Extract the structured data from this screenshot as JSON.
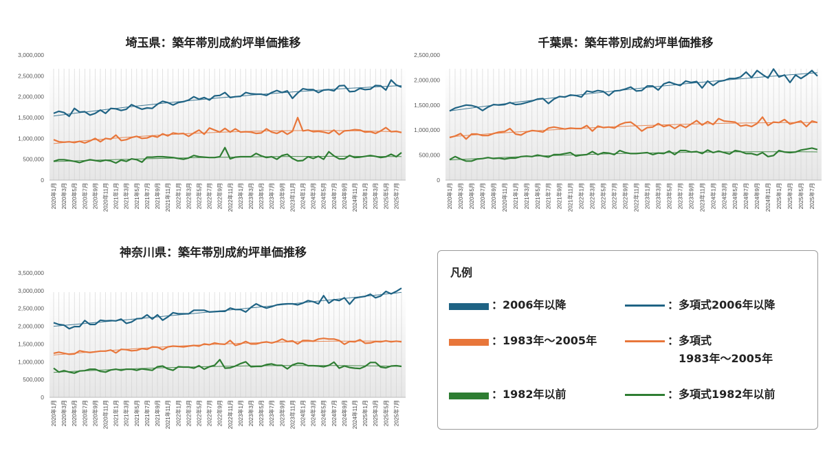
{
  "colors": {
    "post2006": "#1f6384",
    "y1983_2005": "#e8763a",
    "pre1982": "#2e7d32",
    "grid": "#d9d9d9"
  },
  "legend": {
    "title": "凡例",
    "items": [
      {
        "label": "：2006年以降",
        "type": "bar",
        "color": "#1f6384"
      },
      {
        "label": "：多項式2006年以降",
        "type": "line",
        "color": "#1f6384"
      },
      {
        "label": "：1983年～2005年",
        "type": "bar",
        "color": "#e8763a"
      },
      {
        "label": "：多項式\n　1983年～2005年",
        "type": "line",
        "color": "#e8763a"
      },
      {
        "label": "：1982年以前",
        "type": "bar",
        "color": "#2e7d32"
      },
      {
        "label": "：多項式1982年以前",
        "type": "line",
        "color": "#2e7d32"
      }
    ]
  },
  "chart_data": [
    {
      "type": "line",
      "title": "埼玉県：築年帯別成約坪単価推移",
      "ylim": [
        0,
        3000000
      ],
      "yticks": [
        "0",
        "500,000",
        "1,000,000",
        "1,500,000",
        "2,000,000",
        "2,500,000",
        "3,000,000"
      ],
      "start": "2020-01",
      "months": 68,
      "trendline": "polynomial",
      "series": [
        {
          "key": "post2006",
          "values": [
            1600000,
            1650000,
            1620000,
            1530000,
            1720000,
            1630000,
            1640000,
            1560000,
            1600000,
            1680000,
            1600000,
            1720000,
            1710000,
            1670000,
            1700000,
            1810000,
            1750000,
            1700000,
            1730000,
            1720000,
            1820000,
            1890000,
            1860000,
            1800000,
            1860000,
            1880000,
            1920000,
            2000000,
            1940000,
            1980000,
            1920000,
            2020000,
            2030000,
            2100000,
            1980000,
            2000000,
            2010000,
            2100000,
            2070000,
            2060000,
            2060000,
            2030000,
            2100000,
            2150000,
            2100000,
            2140000,
            1960000,
            2090000,
            2190000,
            2170000,
            2170000,
            2100000,
            2160000,
            2170000,
            2140000,
            2260000,
            2270000,
            2120000,
            2130000,
            2200000,
            2170000,
            2180000,
            2270000,
            2260000,
            2160000,
            2400000,
            2280000,
            2230000
          ]
        },
        {
          "key": "y1983_2005",
          "values": [
            970000,
            920000,
            910000,
            920000,
            900000,
            930000,
            890000,
            940000,
            1000000,
            920000,
            1000000,
            980000,
            1080000,
            950000,
            970000,
            1020000,
            1050000,
            1000000,
            1010000,
            1060000,
            1030000,
            1110000,
            1060000,
            1130000,
            1110000,
            1120000,
            1050000,
            1130000,
            1200000,
            1100000,
            1250000,
            1200000,
            1150000,
            1240000,
            1150000,
            1230000,
            1150000,
            1160000,
            1150000,
            1120000,
            1130000,
            1230000,
            1150000,
            1120000,
            1180000,
            1100000,
            1170000,
            1500000,
            1180000,
            1200000,
            1160000,
            1170000,
            1150000,
            1120000,
            1200000,
            1090000,
            1180000,
            1190000,
            1210000,
            1200000,
            1150000,
            1160000,
            1120000,
            1180000,
            1260000,
            1160000,
            1170000,
            1140000
          ]
        },
        {
          "key": "pre1982",
          "values": [
            450000,
            490000,
            490000,
            470000,
            450000,
            420000,
            460000,
            490000,
            470000,
            450000,
            480000,
            460000,
            410000,
            480000,
            450000,
            510000,
            490000,
            430000,
            550000,
            550000,
            560000,
            560000,
            550000,
            540000,
            520000,
            500000,
            530000,
            590000,
            560000,
            550000,
            540000,
            540000,
            560000,
            780000,
            510000,
            550000,
            560000,
            560000,
            560000,
            640000,
            580000,
            540000,
            560000,
            500000,
            590000,
            620000,
            520000,
            460000,
            470000,
            560000,
            520000,
            570000,
            500000,
            680000,
            580000,
            510000,
            510000,
            590000,
            540000,
            550000,
            570000,
            590000,
            570000,
            540000,
            560000,
            620000,
            560000,
            660000
          ]
        }
      ]
    },
    {
      "type": "line",
      "title": "千葉県：築年帯別成約坪単価推移",
      "ylim": [
        0,
        2500000
      ],
      "yticks": [
        "0",
        "500,000",
        "1,000,000",
        "1,500,000",
        "2,000,000",
        "2,500,000"
      ],
      "start": "2020-01",
      "months": 68,
      "trendline": "polynomial",
      "series": [
        {
          "key": "post2006",
          "values": [
            1380000,
            1440000,
            1470000,
            1500000,
            1490000,
            1460000,
            1390000,
            1460000,
            1510000,
            1500000,
            1510000,
            1550000,
            1510000,
            1520000,
            1550000,
            1580000,
            1620000,
            1630000,
            1530000,
            1620000,
            1670000,
            1660000,
            1700000,
            1690000,
            1660000,
            1780000,
            1760000,
            1790000,
            1770000,
            1690000,
            1780000,
            1790000,
            1820000,
            1860000,
            1780000,
            1790000,
            1880000,
            1880000,
            1800000,
            1920000,
            1960000,
            1920000,
            1890000,
            1980000,
            1950000,
            1970000,
            1840000,
            1980000,
            1890000,
            1970000,
            1990000,
            2030000,
            2030000,
            2060000,
            2160000,
            2050000,
            2190000,
            2110000,
            2040000,
            2220000,
            2060000,
            2100000,
            1950000,
            2100000,
            2030000,
            2100000,
            2190000,
            2080000
          ]
        },
        {
          "key": "y1983_2005",
          "values": [
            850000,
            880000,
            930000,
            820000,
            920000,
            920000,
            890000,
            890000,
            930000,
            960000,
            970000,
            1030000,
            920000,
            900000,
            960000,
            990000,
            980000,
            960000,
            1040000,
            1060000,
            1040000,
            1020000,
            1040000,
            1030000,
            1030000,
            1090000,
            980000,
            1080000,
            1050000,
            1060000,
            1040000,
            1110000,
            1150000,
            1160000,
            1080000,
            980000,
            1050000,
            1060000,
            1130000,
            1070000,
            1100000,
            1030000,
            1100000,
            1050000,
            1120000,
            1190000,
            1100000,
            1170000,
            1110000,
            1230000,
            1180000,
            1170000,
            1160000,
            1080000,
            1100000,
            1070000,
            1130000,
            1260000,
            1090000,
            1160000,
            1150000,
            1210000,
            1120000,
            1150000,
            1180000,
            1070000,
            1180000,
            1150000
          ]
        },
        {
          "key": "pre1982",
          "values": [
            410000,
            470000,
            420000,
            380000,
            380000,
            420000,
            430000,
            450000,
            430000,
            440000,
            420000,
            440000,
            440000,
            470000,
            480000,
            470000,
            500000,
            480000,
            460000,
            510000,
            510000,
            530000,
            550000,
            480000,
            500000,
            510000,
            570000,
            510000,
            550000,
            540000,
            510000,
            590000,
            550000,
            530000,
            530000,
            540000,
            550000,
            510000,
            540000,
            530000,
            580000,
            510000,
            590000,
            590000,
            560000,
            570000,
            530000,
            600000,
            550000,
            580000,
            550000,
            520000,
            590000,
            570000,
            530000,
            530000,
            500000,
            550000,
            470000,
            490000,
            590000,
            560000,
            550000,
            560000,
            600000,
            620000,
            640000,
            610000
          ]
        }
      ]
    },
    {
      "type": "line",
      "title": "神奈川県：築年帯別成約坪単価推移",
      "ylim": [
        0,
        3500000
      ],
      "yticks": [
        "0",
        "500,000",
        "1,000,000",
        "1,500,000",
        "2,000,000",
        "2,500,000",
        "3,000,000",
        "3,500,000"
      ],
      "start": "2020-01",
      "months": 68,
      "trendline": "polynomial",
      "series": [
        {
          "key": "post2006",
          "values": [
            2100000,
            2050000,
            2030000,
            1930000,
            1990000,
            1990000,
            2160000,
            2050000,
            2050000,
            2170000,
            2150000,
            2160000,
            2150000,
            2200000,
            2080000,
            2120000,
            2210000,
            2220000,
            2320000,
            2200000,
            2320000,
            2170000,
            2260000,
            2380000,
            2350000,
            2350000,
            2350000,
            2450000,
            2450000,
            2450000,
            2400000,
            2410000,
            2420000,
            2420000,
            2510000,
            2470000,
            2470000,
            2400000,
            2530000,
            2630000,
            2560000,
            2510000,
            2550000,
            2600000,
            2620000,
            2630000,
            2630000,
            2600000,
            2650000,
            2720000,
            2690000,
            2630000,
            2860000,
            2650000,
            2750000,
            2720000,
            2800000,
            2620000,
            2790000,
            2820000,
            2840000,
            2900000,
            2800000,
            2850000,
            2980000,
            2910000,
            2980000,
            3070000
          ]
        },
        {
          "key": "y1983_2005",
          "values": [
            1240000,
            1270000,
            1240000,
            1210000,
            1220000,
            1310000,
            1280000,
            1260000,
            1280000,
            1300000,
            1300000,
            1330000,
            1250000,
            1350000,
            1340000,
            1310000,
            1320000,
            1370000,
            1350000,
            1420000,
            1410000,
            1340000,
            1420000,
            1440000,
            1430000,
            1420000,
            1440000,
            1460000,
            1440000,
            1500000,
            1480000,
            1530000,
            1500000,
            1490000,
            1600000,
            1460000,
            1500000,
            1570000,
            1500000,
            1500000,
            1540000,
            1560000,
            1530000,
            1570000,
            1640000,
            1570000,
            1590000,
            1500000,
            1600000,
            1600000,
            1580000,
            1640000,
            1660000,
            1640000,
            1640000,
            1600000,
            1490000,
            1570000,
            1560000,
            1620000,
            1520000,
            1530000,
            1570000,
            1560000,
            1590000,
            1560000,
            1580000,
            1560000
          ]
        },
        {
          "key": "pre1982",
          "values": [
            820000,
            710000,
            750000,
            710000,
            680000,
            740000,
            750000,
            790000,
            790000,
            730000,
            710000,
            770000,
            790000,
            760000,
            790000,
            790000,
            760000,
            800000,
            780000,
            760000,
            860000,
            880000,
            800000,
            760000,
            860000,
            850000,
            850000,
            820000,
            890000,
            790000,
            860000,
            900000,
            1060000,
            820000,
            830000,
            880000,
            950000,
            1000000,
            860000,
            870000,
            870000,
            920000,
            940000,
            900000,
            900000,
            800000,
            910000,
            960000,
            950000,
            890000,
            890000,
            880000,
            860000,
            900000,
            990000,
            820000,
            880000,
            840000,
            820000,
            810000,
            870000,
            980000,
            980000,
            850000,
            830000,
            880000,
            890000,
            870000
          ]
        }
      ]
    }
  ]
}
